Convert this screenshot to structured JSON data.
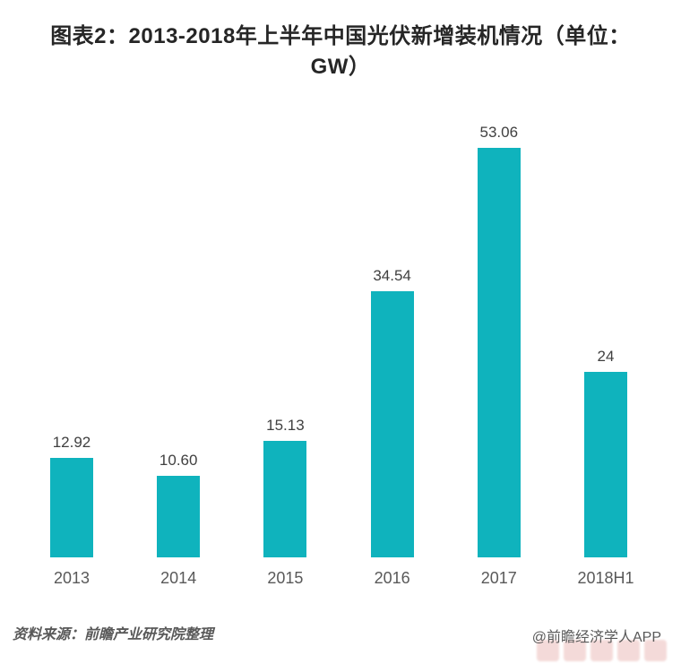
{
  "chart_data": {
    "type": "bar",
    "title": "图表2：2013-2018年上半年中国光伏新增装机情况（单位：GW）",
    "title_lines": [
      "图表2：2013-2018年上半年中国光伏新增装机情况（单位：",
      "GW）"
    ],
    "categories": [
      "2013",
      "2014",
      "2015",
      "2016",
      "2017",
      "2018H1"
    ],
    "values": [
      12.92,
      10.6,
      15.13,
      34.54,
      53.06,
      24
    ],
    "value_labels": [
      "12.92",
      "10.60",
      "15.13",
      "34.54",
      "53.06",
      "24"
    ],
    "unit": "GW",
    "xlabel": "",
    "ylabel": "",
    "ylim": [
      0,
      57
    ],
    "grid": false,
    "legend_position": "none",
    "axis_lines": false
  },
  "footer": {
    "source": "资料来源：前瞻产业研究院整理",
    "credit": "@前瞻经济学人APP"
  },
  "colors": {
    "title": "#262626",
    "value_label": "#404040",
    "axis_label": "#595959",
    "footer_text": "#595959",
    "bar": "#0FB3BD",
    "watermark": "#EAB7B4",
    "background": "#FFFFFF"
  }
}
